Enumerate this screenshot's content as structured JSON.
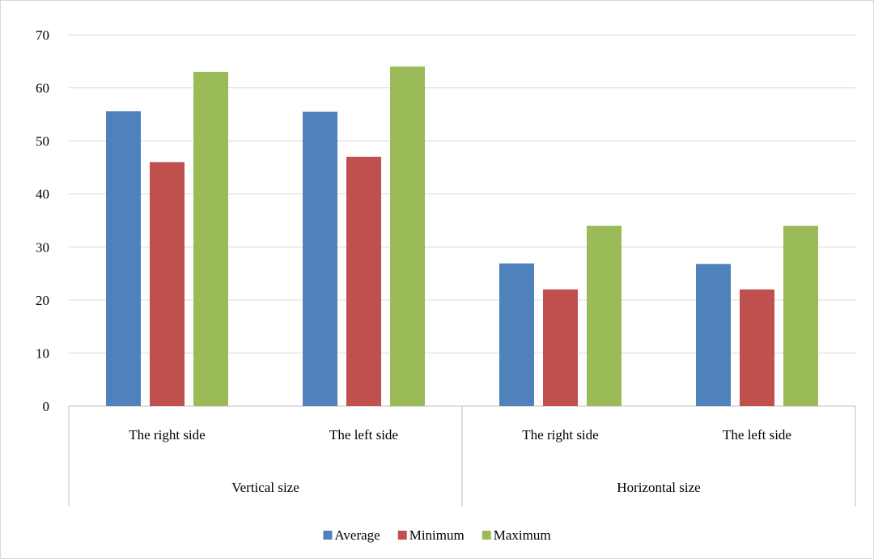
{
  "chart_data": {
    "type": "bar",
    "title": "",
    "xlabel": "",
    "ylabel": "",
    "ylim": [
      0,
      70
    ],
    "yticks": [
      0,
      10,
      20,
      30,
      40,
      50,
      60,
      70
    ],
    "grid": true,
    "legend_position": "bottom",
    "groups": [
      {
        "label": "Vertical size",
        "categories": [
          "The right side",
          "The left side"
        ]
      },
      {
        "label": "Horizontal size",
        "categories": [
          "The right side",
          "The left side"
        ]
      }
    ],
    "categories": [
      "The right side",
      "The left side",
      "The right side",
      "The left side"
    ],
    "series": [
      {
        "name": "Average",
        "color": "#4f81bd",
        "values": [
          55.6,
          55.5,
          26.9,
          26.8
        ]
      },
      {
        "name": "Minimum",
        "color": "#c0504d",
        "values": [
          46,
          47,
          22,
          22
        ]
      },
      {
        "name": "Maximum",
        "color": "#9bbb59",
        "values": [
          63,
          64,
          34,
          34
        ]
      }
    ]
  }
}
